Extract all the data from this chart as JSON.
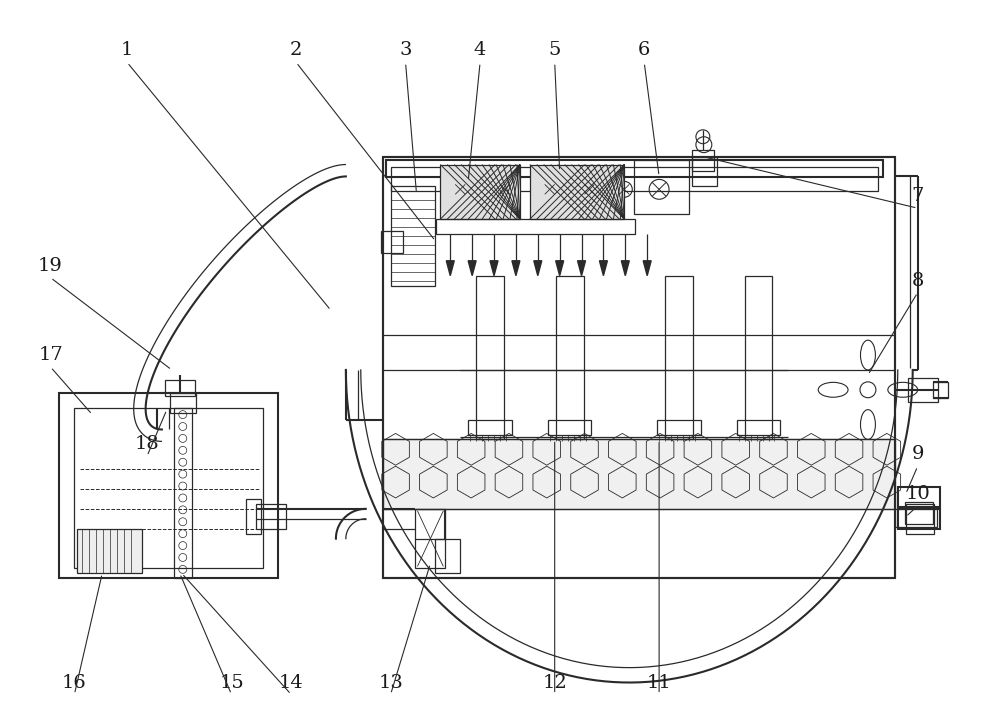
{
  "bg_color": "#ffffff",
  "line_color": "#2a2a2a",
  "lw": 1.5,
  "tlw": 0.9,
  "fs": 14,
  "label_color": "#1a1a1a",
  "figsize": [
    10.0,
    7.24
  ],
  "dpi": 100
}
